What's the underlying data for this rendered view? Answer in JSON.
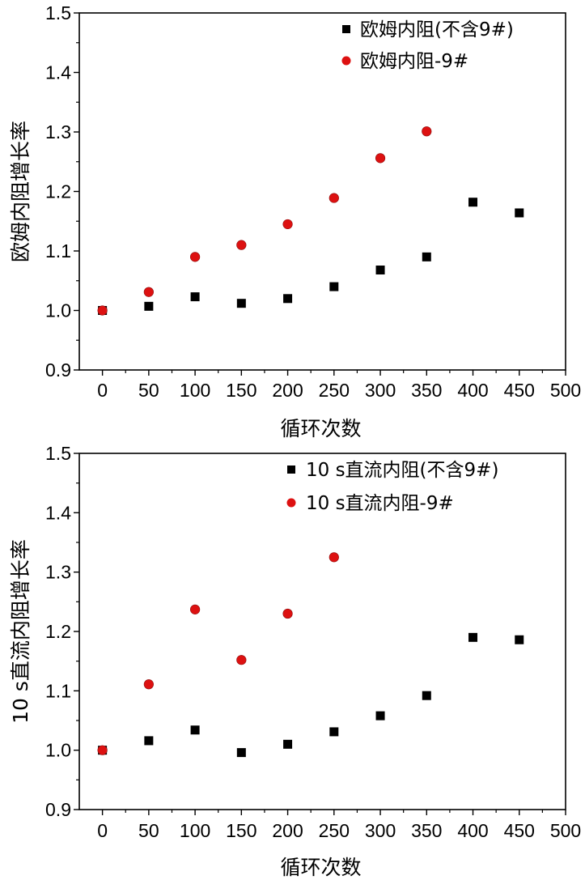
{
  "colors": {
    "black_series": "#000000",
    "red_series": "#dd1111",
    "axis": "#000000",
    "background": "#ffffff"
  },
  "chart_data": [
    {
      "type": "scatter",
      "title": "",
      "xlabel": "循环次数",
      "ylabel": "欧姆内阻增长率",
      "xlim": [
        -25,
        500
      ],
      "ylim": [
        0.9,
        1.5
      ],
      "xticks": [
        0,
        50,
        100,
        150,
        200,
        250,
        300,
        350,
        400,
        450,
        500
      ],
      "yticks": [
        "0.9",
        "1.0",
        "1.1",
        "1.2",
        "1.3",
        "1.4",
        "1.5"
      ],
      "grid": false,
      "legend_position": "top-right",
      "series": [
        {
          "name": "欧姆内阻(不含9#)",
          "marker": "square",
          "color": "#000000",
          "x": [
            0,
            50,
            100,
            150,
            200,
            250,
            300,
            350,
            400,
            450
          ],
          "y": [
            1.0,
            1.007,
            1.023,
            1.012,
            1.02,
            1.04,
            1.068,
            1.09,
            1.182,
            1.164
          ]
        },
        {
          "name": "欧姆内阻-9#",
          "marker": "circle",
          "color": "#dd1111",
          "x": [
            0,
            50,
            100,
            150,
            200,
            250,
            300,
            350
          ],
          "y": [
            1.0,
            1.031,
            1.09,
            1.11,
            1.145,
            1.189,
            1.256,
            1.301
          ]
        }
      ]
    },
    {
      "type": "scatter",
      "title": "",
      "xlabel": "循环次数",
      "ylabel": "10 s直流内阻增长率",
      "xlim": [
        -25,
        500
      ],
      "ylim": [
        0.9,
        1.5
      ],
      "xticks": [
        0,
        50,
        100,
        150,
        200,
        250,
        300,
        350,
        400,
        450,
        500
      ],
      "yticks": [
        "0.9",
        "1.0",
        "1.1",
        "1.2",
        "1.3",
        "1.4",
        "1.5"
      ],
      "grid": false,
      "legend_position": "top-right",
      "series": [
        {
          "name": "10 s直流内阻(不含9#)",
          "marker": "square",
          "color": "#000000",
          "x": [
            0,
            50,
            100,
            150,
            200,
            250,
            300,
            350,
            400,
            450
          ],
          "y": [
            1.0,
            1.016,
            1.034,
            0.996,
            1.01,
            1.031,
            1.058,
            1.092,
            1.19,
            1.186
          ]
        },
        {
          "name": "10 s直流内阻-9#",
          "marker": "circle",
          "color": "#dd1111",
          "x": [
            0,
            50,
            100,
            150,
            200,
            250
          ],
          "y": [
            1.0,
            1.111,
            1.237,
            1.152,
            1.23,
            1.325
          ]
        }
      ]
    }
  ]
}
